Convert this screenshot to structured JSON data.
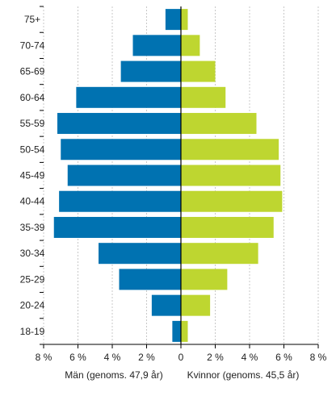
{
  "chart_data": {
    "type": "bar",
    "orientation": "horizontal-population-pyramid",
    "categories": [
      "75+",
      "70-74",
      "65-69",
      "60-64",
      "55-59",
      "50-54",
      "45-49",
      "40-44",
      "35-39",
      "30-34",
      "25-29",
      "20-24",
      "18-19"
    ],
    "series": [
      {
        "name": "Män (genoms. 47,9 år)",
        "color": "#0072b1",
        "side": "left",
        "values": [
          0.9,
          2.8,
          3.5,
          6.1,
          7.2,
          7.0,
          6.6,
          7.1,
          7.4,
          4.8,
          3.6,
          1.7,
          0.5
        ]
      },
      {
        "name": "Kvinnor (genoms. 45,5 år)",
        "color": "#bed630",
        "side": "right",
        "values": [
          0.4,
          1.1,
          2.0,
          2.6,
          4.4,
          5.7,
          5.8,
          5.9,
          5.4,
          4.5,
          2.7,
          1.7,
          0.4
        ]
      }
    ],
    "xlim": [
      -8,
      8
    ],
    "x_ticks": [
      -8,
      -6,
      -4,
      -2,
      0,
      2,
      4,
      6,
      8
    ],
    "x_tick_labels": [
      "8 %",
      "6 %",
      "4 %",
      "2 %",
      "0",
      "2 %",
      "4 %",
      "6 %",
      "8 %"
    ],
    "x_titles": {
      "left": "Män (genoms. 47,9 år)",
      "right": "Kvinnor (genoms. 45,5 år)"
    },
    "grid": "vertical",
    "grid_color": "#c8c8c8",
    "axis_color": "#000000"
  }
}
